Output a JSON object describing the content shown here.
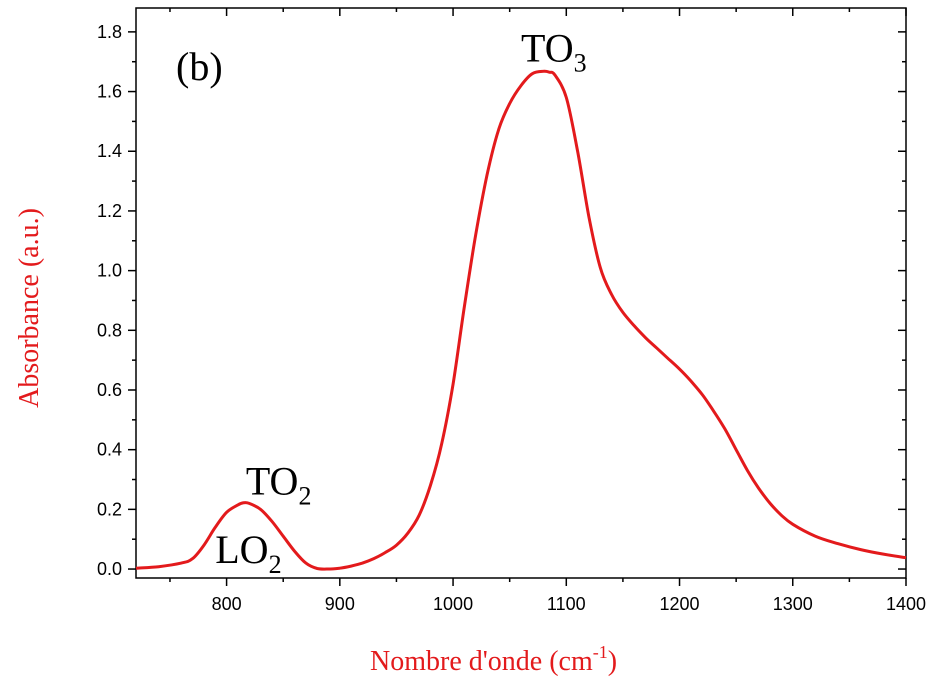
{
  "chart_data": {
    "type": "line",
    "panel_label": "(b)",
    "xlabel": "Nombre d'onde (cm",
    "xlabel_sup": "-1",
    "xlabel_close": ")",
    "ylabel": "Absorbance (a.u.)",
    "xlim": [
      720,
      1400
    ],
    "ylim": [
      -0.03,
      1.88
    ],
    "xticks": [
      800,
      900,
      1000,
      1100,
      1200,
      1300,
      1400
    ],
    "xtick_labels": [
      "800",
      "900",
      "1000",
      "1100",
      "1200",
      "1300",
      "1400"
    ],
    "yticks": [
      0.0,
      0.2,
      0.4,
      0.6,
      0.8,
      1.0,
      1.2,
      1.4,
      1.6,
      1.8
    ],
    "ytick_labels": [
      "0.0",
      "0.2",
      "0.4",
      "0.6",
      "0.8",
      "1.0",
      "1.2",
      "1.4",
      "1.6",
      "1.8"
    ],
    "grid": false,
    "line_color": "#e31a1c",
    "annotations": [
      {
        "text": "TO",
        "sub": "3",
        "x": 1060,
        "y": 1.7
      },
      {
        "text": "TO",
        "sub": "2",
        "x": 817,
        "y": 0.25
      },
      {
        "text": "LO",
        "sub": "2",
        "x": 790,
        "y": 0.02
      }
    ],
    "series": [
      {
        "x": [
          720,
          740,
          760,
          770,
          780,
          790,
          800,
          810,
          815,
          820,
          830,
          840,
          850,
          860,
          870,
          880,
          890,
          900,
          910,
          920,
          930,
          940,
          950,
          960,
          970,
          980,
          990,
          1000,
          1010,
          1020,
          1030,
          1040,
          1050,
          1060,
          1070,
          1080,
          1085,
          1090,
          1100,
          1110,
          1120,
          1130,
          1140,
          1150,
          1160,
          1170,
          1180,
          1190,
          1200,
          1210,
          1220,
          1230,
          1240,
          1250,
          1260,
          1270,
          1280,
          1290,
          1300,
          1320,
          1340,
          1360,
          1380,
          1400
        ],
        "y": [
          0.003,
          0.008,
          0.02,
          0.035,
          0.08,
          0.14,
          0.19,
          0.215,
          0.222,
          0.22,
          0.2,
          0.16,
          0.11,
          0.06,
          0.02,
          0.002,
          0.0,
          0.003,
          0.01,
          0.02,
          0.035,
          0.055,
          0.08,
          0.12,
          0.18,
          0.28,
          0.42,
          0.62,
          0.88,
          1.12,
          1.32,
          1.47,
          1.56,
          1.62,
          1.66,
          1.668,
          1.665,
          1.655,
          1.58,
          1.4,
          1.18,
          1.01,
          0.92,
          0.86,
          0.815,
          0.775,
          0.74,
          0.705,
          0.67,
          0.63,
          0.585,
          0.53,
          0.47,
          0.4,
          0.33,
          0.27,
          0.22,
          0.18,
          0.15,
          0.11,
          0.085,
          0.065,
          0.05,
          0.038
        ]
      }
    ]
  }
}
